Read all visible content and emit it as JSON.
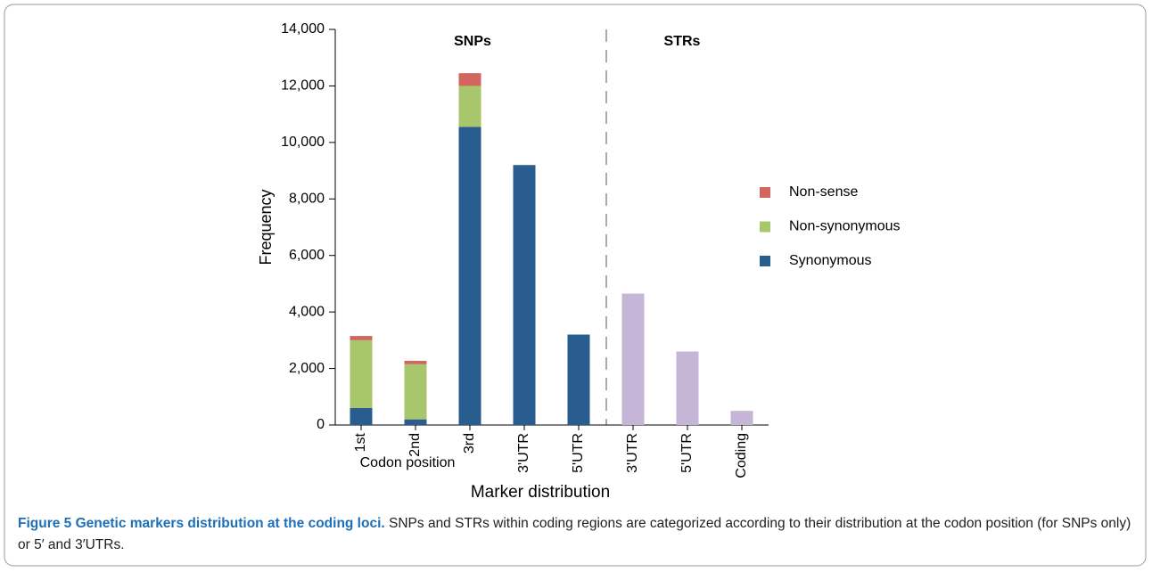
{
  "chart_data": {
    "type": "stacked-bar",
    "categories": [
      "1st",
      "2nd",
      "3rd",
      "3'UTR",
      "5'UTR",
      "3'UTR",
      "5'UTR",
      "Coding"
    ],
    "series": [
      {
        "name": "Synonymous",
        "color": "#2a5d8f",
        "values": [
          600,
          200,
          10550,
          9200,
          3200,
          null,
          null,
          null
        ]
      },
      {
        "name": "Non-synonymous",
        "color": "#a8c66c",
        "values": [
          2400,
          1950,
          1450,
          null,
          null,
          null,
          null,
          null
        ]
      },
      {
        "name": "Non-sense",
        "color": "#d2665e",
        "values": [
          150,
          120,
          450,
          null,
          null,
          null,
          null,
          null
        ]
      },
      {
        "color": "#c5b5d6",
        "values": [
          null,
          null,
          null,
          null,
          null,
          4650,
          2600,
          500
        ]
      }
    ],
    "ylim": [
      0,
      14000
    ],
    "yticks": [
      0,
      {
        "value": 2000,
        "label": "2,000"
      },
      {
        "value": 4000,
        "label": "4,000"
      },
      {
        "value": 6000,
        "label": "6,000"
      },
      {
        "value": 8000,
        "label": "8,000"
      },
      {
        "value": 10000,
        "label": "10,000"
      },
      {
        "value": 12000,
        "label": "12,000"
      },
      {
        "value": 14000,
        "label": "14,000"
      }
    ],
    "ylabel": "Frequency",
    "xlabel": "Marker distribution",
    "group_label": "Codon position",
    "annotations": [
      "SNPs",
      "STRs"
    ],
    "caption_title": "Figure 5 Genetic markers distribution at the coding loci.",
    "caption_text": "SNPs and STRs within coding regions are categorized according to their distribution at the codon position (for SNPs only) or 5′ and 3′UTRs."
  }
}
